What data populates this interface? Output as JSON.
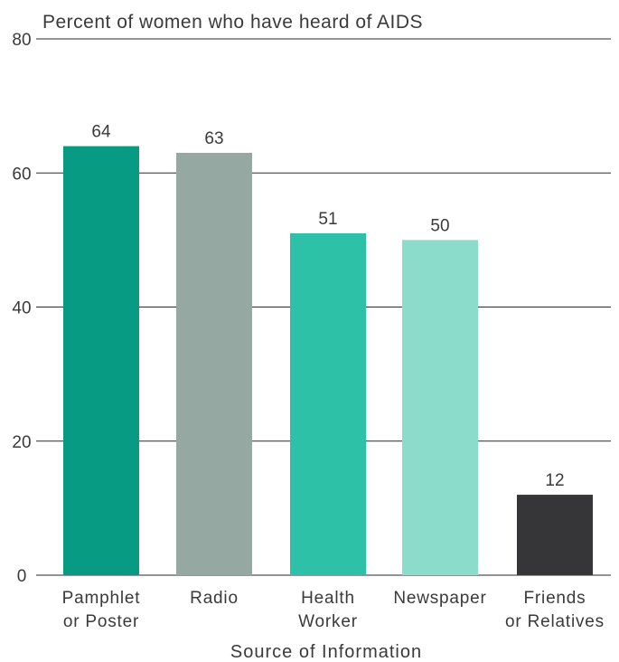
{
  "chart_data": {
    "type": "bar",
    "title": "Percent of women who have heard of AIDS",
    "xlabel": "Source of Information",
    "ylabel": "",
    "ylim": [
      0,
      80
    ],
    "yticks": [
      0,
      20,
      40,
      60,
      80
    ],
    "grid": true,
    "categories": [
      [
        "Pamphlet",
        "or Poster"
      ],
      [
        "Radio"
      ],
      [
        "Health",
        "Worker"
      ],
      [
        "Newspaper"
      ],
      [
        "Friends",
        "or Relatives"
      ]
    ],
    "values": [
      64,
      63,
      51,
      50,
      12
    ],
    "colors": [
      "#079b84",
      "#96a8a2",
      "#2dc2a8",
      "#8cdccc",
      "#363638"
    ]
  }
}
